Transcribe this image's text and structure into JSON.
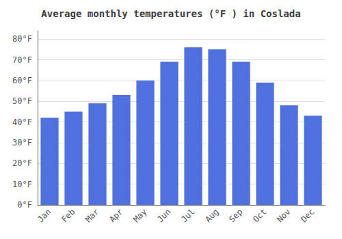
{
  "chart_data": {
    "type": "bar",
    "title": "Average monthly temperatures (°F ) in Coslada",
    "categories": [
      "Jan",
      "Feb",
      "Mar",
      "Apr",
      "May",
      "Jun",
      "Jul",
      "Aug",
      "Sep",
      "Oct",
      "Nov",
      "Dec"
    ],
    "values": [
      42,
      45,
      49,
      53,
      60,
      69,
      76,
      75,
      69,
      59,
      48,
      43
    ],
    "ylim": [
      0,
      84
    ],
    "yticks": [
      {
        "value": 0,
        "label": "0°F"
      },
      {
        "value": 10,
        "label": "10°F"
      },
      {
        "value": 20,
        "label": "20°F"
      },
      {
        "value": 30,
        "label": "30°F"
      },
      {
        "value": 40,
        "label": "40°F"
      },
      {
        "value": 50,
        "label": "50°F"
      },
      {
        "value": 60,
        "label": "60°F"
      },
      {
        "value": 70,
        "label": "70°F"
      },
      {
        "value": 80,
        "label": "80°F"
      }
    ],
    "grid": true
  }
}
